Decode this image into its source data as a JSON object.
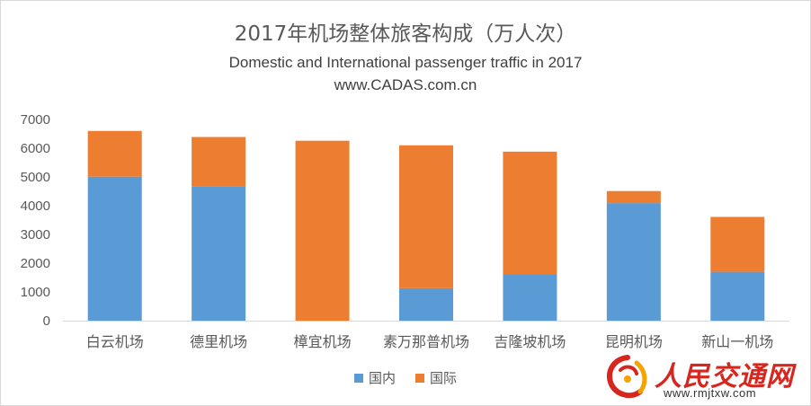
{
  "chart_data": {
    "type": "bar",
    "stacked": true,
    "title": "2017年机场整体旅客构成（万人次）",
    "subtitle_lines": [
      "Domestic and International passenger traffic in 2017",
      "www.CADAS.com.cn"
    ],
    "categories": [
      "白云机场",
      "德里机场",
      "樟宜机场",
      "素万那普机场",
      "吉隆坡机场",
      "昆明机场",
      "新山一机场"
    ],
    "series": [
      {
        "name": "国内",
        "color": "#5b9bd5",
        "values": [
          5010,
          4660,
          0,
          1130,
          1610,
          4090,
          1700
        ]
      },
      {
        "name": "国际",
        "color": "#ed7d31",
        "values": [
          1590,
          1730,
          6260,
          4970,
          4270,
          420,
          1910
        ]
      }
    ],
    "ylim": [
      0,
      7000
    ],
    "yticks": [
      "0",
      "1000",
      "2000",
      "3000",
      "4000",
      "5000",
      "6000",
      "7000"
    ],
    "grid": false,
    "legend_position": "bottom"
  },
  "watermark": {
    "brand": "人民交通网",
    "url": "www.rmjtxw.com"
  }
}
